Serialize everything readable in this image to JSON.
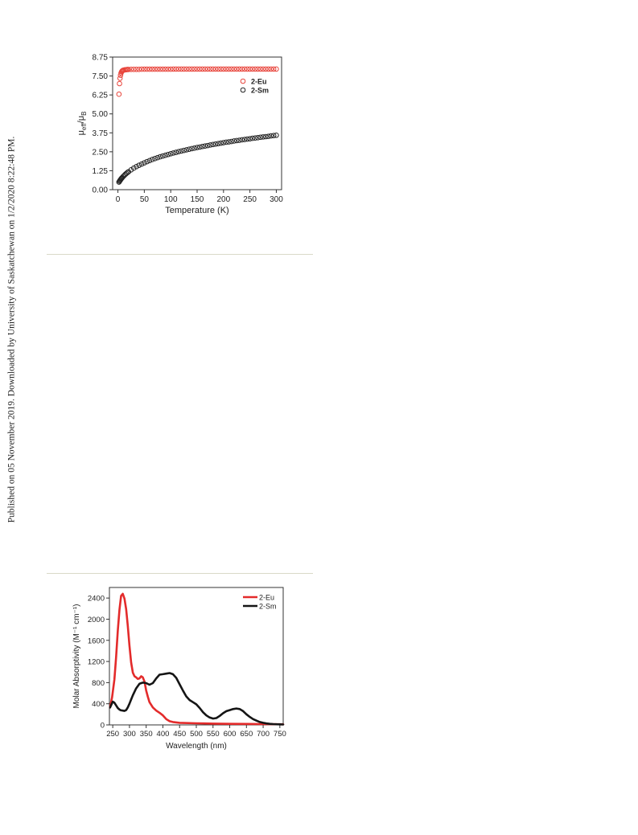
{
  "side_note": "Published on 05 November 2019. Downloaded by University of Saskatchewan on 1/2/2020 8:22:48 PM.",
  "colors": {
    "eu": "#e8453c",
    "sm": "#222222",
    "eu_line": "#e32b2b",
    "sm_line": "#151515",
    "divider": "#d9d9c8"
  },
  "chart_data": [
    {
      "type": "scatter",
      "title": "",
      "xlabel": "Temperature (K)",
      "ylabel_parts": [
        "μ",
        "eff",
        "/μ",
        "B"
      ],
      "xlim": [
        -10,
        310
      ],
      "ylim": [
        0,
        8.75
      ],
      "x_ticks": [
        "0",
        "50",
        "100",
        "150",
        "200",
        "250",
        "300"
      ],
      "y_ticks": [
        "0.00",
        "1.25",
        "2.50",
        "3.75",
        "5.00",
        "6.25",
        "7.50",
        "8.75"
      ],
      "legend": {
        "placement": "top-right"
      },
      "marker": "open-circle",
      "series": [
        {
          "name": "2-Eu",
          "x": [
            2,
            3,
            4,
            5,
            6,
            7,
            8,
            9,
            10,
            12,
            14,
            16,
            18,
            20,
            25,
            30,
            35,
            40,
            45,
            50,
            55,
            60,
            65,
            70,
            75,
            80,
            85,
            90,
            95,
            100,
            105,
            110,
            115,
            120,
            125,
            130,
            135,
            140,
            145,
            150,
            155,
            160,
            165,
            170,
            175,
            180,
            185,
            190,
            195,
            200,
            205,
            210,
            215,
            220,
            225,
            230,
            235,
            240,
            245,
            250,
            255,
            260,
            265,
            270,
            275,
            280,
            285,
            290,
            295,
            300
          ],
          "y": [
            6.3,
            7.0,
            7.35,
            7.55,
            7.7,
            7.78,
            7.83,
            7.86,
            7.88,
            7.9,
            7.91,
            7.92,
            7.93,
            7.93,
            7.94,
            7.94,
            7.94,
            7.94,
            7.95,
            7.95,
            7.95,
            7.95,
            7.95,
            7.95,
            7.95,
            7.95,
            7.95,
            7.95,
            7.95,
            7.95,
            7.96,
            7.96,
            7.96,
            7.96,
            7.96,
            7.96,
            7.96,
            7.96,
            7.96,
            7.96,
            7.96,
            7.96,
            7.96,
            7.96,
            7.96,
            7.96,
            7.96,
            7.96,
            7.96,
            7.96,
            7.96,
            7.96,
            7.96,
            7.96,
            7.96,
            7.96,
            7.96,
            7.96,
            7.96,
            7.96,
            7.96,
            7.96,
            7.96,
            7.96,
            7.96,
            7.96,
            7.96,
            7.96,
            7.96,
            7.96
          ]
        },
        {
          "name": "2-Sm",
          "x": [
            2,
            3,
            4,
            5,
            6,
            7,
            8,
            10,
            12,
            14,
            16,
            18,
            20,
            25,
            30,
            35,
            40,
            45,
            50,
            55,
            60,
            65,
            70,
            75,
            80,
            85,
            90,
            95,
            100,
            105,
            110,
            115,
            120,
            125,
            130,
            135,
            140,
            145,
            150,
            155,
            160,
            165,
            170,
            175,
            180,
            185,
            190,
            195,
            200,
            205,
            210,
            215,
            220,
            225,
            230,
            235,
            240,
            245,
            250,
            255,
            260,
            265,
            270,
            275,
            280,
            285,
            290,
            295,
            300
          ],
          "y": [
            0.5,
            0.56,
            0.61,
            0.66,
            0.71,
            0.75,
            0.79,
            0.87,
            0.94,
            1.01,
            1.07,
            1.13,
            1.18,
            1.31,
            1.42,
            1.52,
            1.61,
            1.69,
            1.77,
            1.85,
            1.92,
            1.99,
            2.05,
            2.11,
            2.17,
            2.22,
            2.27,
            2.32,
            2.37,
            2.42,
            2.46,
            2.51,
            2.55,
            2.59,
            2.63,
            2.67,
            2.71,
            2.74,
            2.78,
            2.81,
            2.85,
            2.88,
            2.91,
            2.95,
            2.98,
            3.01,
            3.04,
            3.07,
            3.1,
            3.13,
            3.15,
            3.18,
            3.21,
            3.24,
            3.26,
            3.29,
            3.31,
            3.34,
            3.36,
            3.39,
            3.41,
            3.43,
            3.46,
            3.48,
            3.5,
            3.52,
            3.55,
            3.57,
            3.59
          ]
        }
      ]
    },
    {
      "type": "line",
      "title": "",
      "xlabel": "Wavelength (nm)",
      "ylabel": "Molar Absorptivity (M⁻¹ cm⁻¹)",
      "xlim": [
        240,
        760
      ],
      "ylim": [
        0,
        2600
      ],
      "x_ticks": [
        "250",
        "300",
        "350",
        "400",
        "450",
        "500",
        "550",
        "600",
        "650",
        "700",
        "750"
      ],
      "y_ticks": [
        "0",
        "400",
        "800",
        "1200",
        "1600",
        "2000",
        "2400"
      ],
      "legend": {
        "placement": "top-right"
      },
      "series": [
        {
          "name": "2-Eu",
          "x": [
            242,
            248,
            255,
            260,
            265,
            270,
            275,
            280,
            285,
            290,
            295,
            300,
            305,
            310,
            315,
            320,
            325,
            330,
            335,
            340,
            345,
            350,
            355,
            360,
            370,
            380,
            390,
            400,
            410,
            420,
            430,
            450,
            500,
            550,
            600,
            650,
            700,
            750,
            760
          ],
          "y": [
            330,
            520,
            860,
            1280,
            1780,
            2180,
            2440,
            2480,
            2390,
            2190,
            1880,
            1500,
            1180,
            990,
            920,
            900,
            870,
            880,
            920,
            900,
            820,
            650,
            530,
            430,
            330,
            270,
            230,
            180,
            110,
            70,
            55,
            40,
            30,
            25,
            20,
            18,
            15,
            12,
            10
          ]
        },
        {
          "name": "2-Sm",
          "x": [
            242,
            250,
            255,
            260,
            265,
            270,
            275,
            280,
            285,
            290,
            295,
            300,
            305,
            310,
            320,
            330,
            340,
            350,
            360,
            370,
            380,
            390,
            400,
            410,
            420,
            430,
            440,
            450,
            460,
            470,
            480,
            490,
            500,
            510,
            520,
            530,
            540,
            550,
            560,
            570,
            580,
            590,
            600,
            610,
            620,
            630,
            640,
            650,
            660,
            670,
            680,
            690,
            700,
            710,
            720,
            730,
            740,
            750,
            760
          ],
          "y": [
            330,
            440,
            420,
            370,
            320,
            290,
            275,
            270,
            265,
            280,
            330,
            400,
            480,
            560,
            690,
            780,
            800,
            790,
            760,
            790,
            880,
            950,
            960,
            970,
            980,
            960,
            890,
            770,
            650,
            540,
            470,
            430,
            390,
            320,
            240,
            180,
            140,
            120,
            130,
            170,
            220,
            260,
            280,
            300,
            310,
            300,
            260,
            200,
            150,
            110,
            80,
            55,
            40,
            28,
            20,
            15,
            12,
            10,
            8
          ]
        }
      ]
    }
  ]
}
